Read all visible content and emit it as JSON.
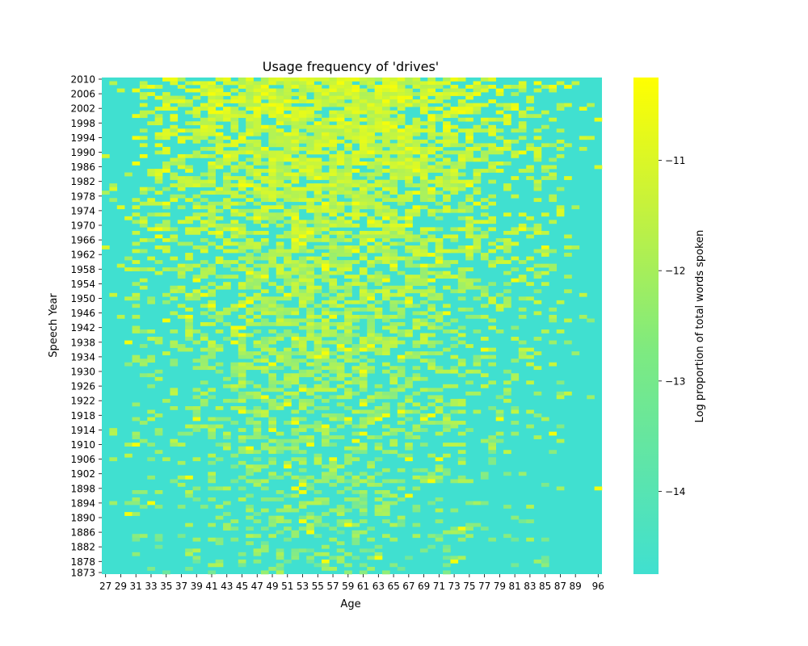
{
  "chart_data": {
    "type": "heatmap",
    "title": "Usage frequency of 'drives'",
    "xlabel": "Age",
    "ylabel": "Speech Year",
    "colorbar_label": "Log proportion of total words spoken",
    "x_tick_labels": [
      "27",
      "29",
      "31",
      "33",
      "35",
      "37",
      "39",
      "41",
      "43",
      "45",
      "47",
      "49",
      "51",
      "53",
      "55",
      "57",
      "59",
      "61",
      "63",
      "65",
      "67",
      "69",
      "71",
      "73",
      "75",
      "77",
      "79",
      "81",
      "83",
      "85",
      "87",
      "89",
      "96"
    ],
    "y_tick_labels": [
      "2010",
      "2006",
      "2002",
      "1998",
      "1994",
      "1990",
      "1986",
      "1982",
      "1978",
      "1974",
      "1970",
      "1966",
      "1962",
      "1958",
      "1954",
      "1950",
      "1946",
      "1942",
      "1938",
      "1934",
      "1930",
      "1926",
      "1922",
      "1918",
      "1914",
      "1910",
      "1906",
      "1902",
      "1898",
      "1894",
      "1890",
      "1886",
      "1882",
      "1878",
      "1873"
    ],
    "colorbar_ticks": [
      -11,
      -12,
      -13,
      -14
    ],
    "colorbar_tick_labels": [
      "−11",
      "−12",
      "−13",
      "−14"
    ],
    "color_range": [
      -14.75,
      -10.25
    ],
    "colorscale": [
      "#40e0d0",
      "#ffff00"
    ],
    "grid": false,
    "description_of_values": "Cell values estimated: background about -14.75; densest region ages 45-70, years 1960-2010 about -11 to -11.5; scattered cells across ages 35-80 and all years."
  }
}
